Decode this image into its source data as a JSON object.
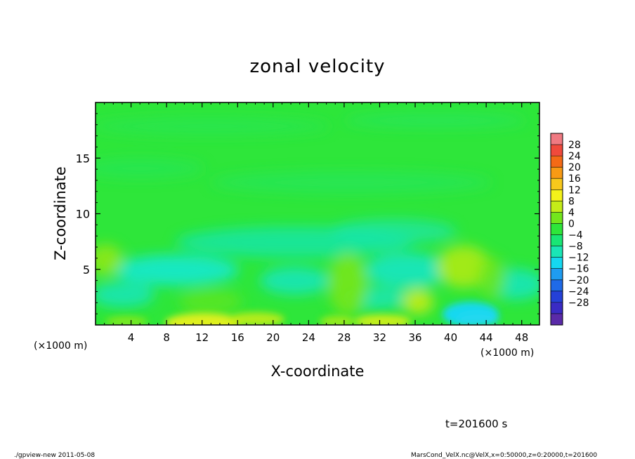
{
  "chart_data": {
    "type": "heatmap",
    "title": "zonal velocity",
    "xlabel": "X-coordinate",
    "ylabel": "Z-coordinate",
    "x_unit_note_left": "(×1000 m)",
    "x_unit_note_right": "(×1000 m)",
    "xlim": [
      0,
      50
    ],
    "ylim": [
      0,
      20
    ],
    "xticks": [
      4,
      8,
      12,
      16,
      20,
      24,
      28,
      32,
      36,
      40,
      44,
      48
    ],
    "yticks": [
      5,
      10,
      15
    ],
    "colorbar": {
      "levels": [
        -32,
        -28,
        -24,
        -20,
        -16,
        -12,
        -8,
        -4,
        0,
        4,
        8,
        12,
        16,
        20,
        24,
        28,
        32
      ],
      "tick_labels": [
        "28",
        "24",
        "20",
        "16",
        "12",
        "8",
        "4",
        "0",
        "−4",
        "−8",
        "−12",
        "−16",
        "−20",
        "−24",
        "−28"
      ],
      "colors": [
        "#5a2aa8",
        "#3a2bc4",
        "#2541d8",
        "#1f6ae8",
        "#1f9cf0",
        "#15d8f0",
        "#1ae6b6",
        "#19e675",
        "#2ee63a",
        "#73e61c",
        "#c4ec18",
        "#f4f21a",
        "#f8c81c",
        "#f89a14",
        "#f46a16",
        "#f04a3c",
        "#f07a82"
      ]
    },
    "grid": false,
    "legend": "right",
    "field_description": "mostly 0 to −8 m/s with positive patches near surface",
    "velocity_samples": [
      [
        -2,
        0
      ],
      [
        2,
        -3
      ],
      [
        -1,
        1
      ],
      [
        1,
        8
      ]
    ]
  },
  "annotations": {
    "time_label": "t=201600 s",
    "footer_left": "./gpview-new   2011-05-08",
    "footer_right": "MarsCond_VelX.nc@VelX,x=0:50000,z=0:20000,t=201600"
  }
}
